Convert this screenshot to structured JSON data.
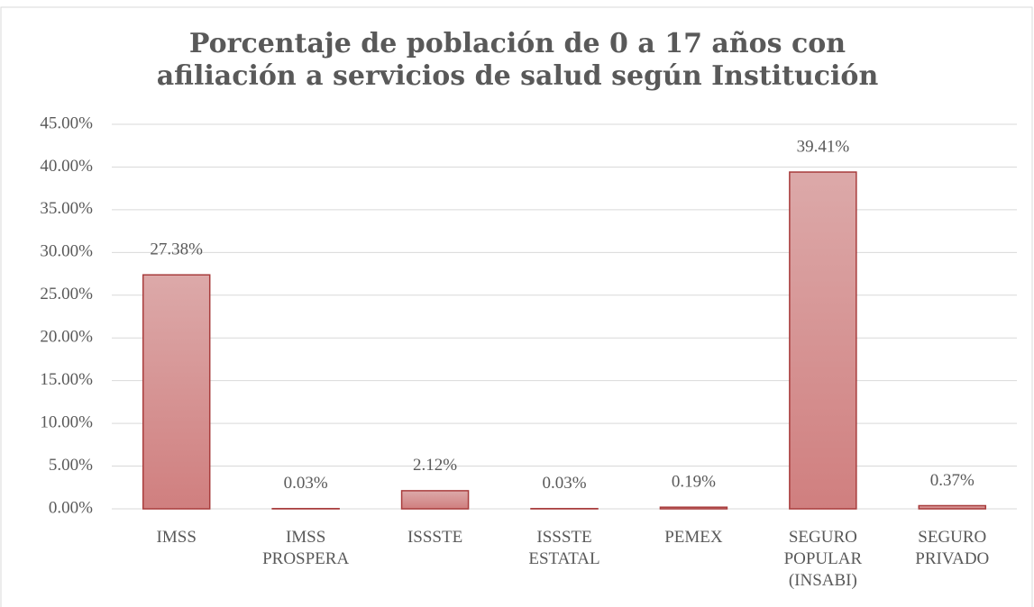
{
  "chart_data": {
    "type": "bar",
    "title": "Porcentaje de población de 0 a 17 años con afiliación a servicios de salud según Institución",
    "categories": [
      "IMSS",
      "IMSS PROSPERA",
      "ISSSTE",
      "ISSSTE ESTATAL",
      "PEMEX",
      "SEGURO POPULAR (INSABI)",
      "SEGURO PRIVADO"
    ],
    "values": [
      27.38,
      0.03,
      2.12,
      0.03,
      0.19,
      39.41,
      0.37
    ],
    "value_labels": [
      "27.38%",
      "0.03%",
      "2.12%",
      "0.03%",
      "0.19%",
      "39.41%",
      "0.37%"
    ],
    "color": "#d58c8c",
    "ylim": [
      0,
      45
    ],
    "yticks": [
      {
        "value": 0,
        "label": "0.00%"
      },
      {
        "value": 5,
        "label": "5.00%"
      },
      {
        "value": 10,
        "label": "10.00%"
      },
      {
        "value": 15,
        "label": "15.00%"
      },
      {
        "value": 20,
        "label": "20.00%"
      },
      {
        "value": 25,
        "label": "25.00%"
      },
      {
        "value": 30,
        "label": "30.00%"
      },
      {
        "value": 35,
        "label": "35.00%"
      },
      {
        "value": 40,
        "label": "40.00%"
      },
      {
        "value": 45,
        "label": "45.00%"
      }
    ],
    "grid": true
  }
}
